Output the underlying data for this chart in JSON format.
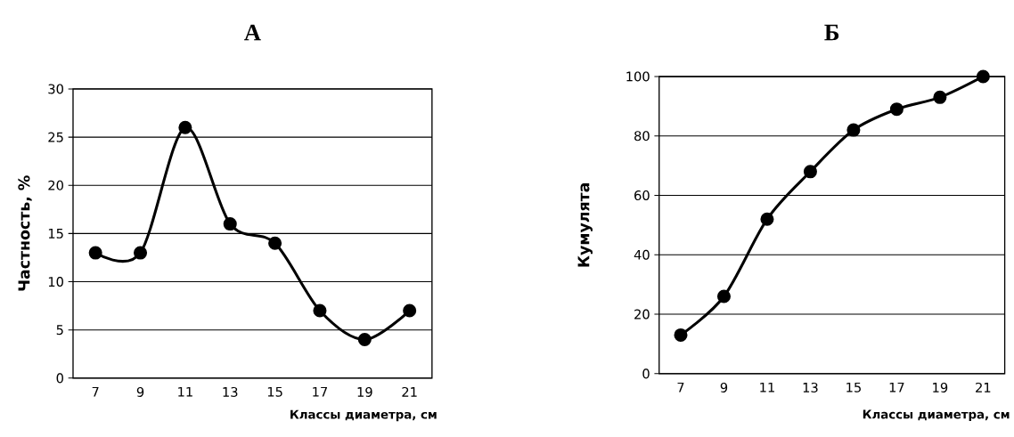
{
  "chart_data": [
    {
      "type": "line",
      "title": "А",
      "xlabel": "Классы диаметра, см",
      "ylabel": "Частность, %",
      "categories": [
        "7",
        "9",
        "11",
        "13",
        "15",
        "17",
        "19",
        "21"
      ],
      "values": [
        13,
        13,
        26,
        16,
        14,
        7,
        4,
        7
      ],
      "color": "#000000",
      "ylim": [
        0,
        30
      ],
      "yticks": [
        0,
        5,
        10,
        15,
        20,
        25,
        30
      ],
      "grid": "y",
      "marker": "circle",
      "line_style": "solid"
    },
    {
      "type": "line",
      "title": "Б",
      "xlabel": "Классы диаметра, см",
      "ylabel": "Кумулята",
      "categories": [
        "7",
        "9",
        "11",
        "13",
        "15",
        "17",
        "19",
        "21"
      ],
      "values": [
        13,
        26,
        52,
        68,
        82,
        89,
        93,
        100
      ],
      "color": "#000000",
      "ylim": [
        0,
        100
      ],
      "yticks": [
        0,
        20,
        40,
        60,
        80,
        100
      ],
      "grid": "y",
      "marker": "circle",
      "line_style": "solid"
    }
  ]
}
